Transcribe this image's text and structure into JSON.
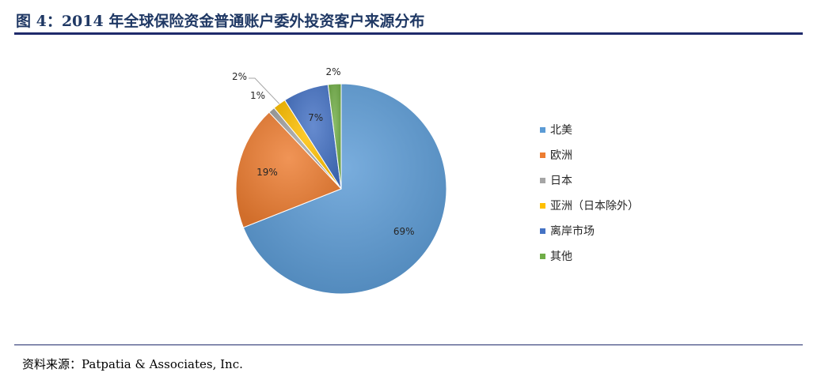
{
  "title": "图 4：2014 年全球保险资金普通账户委外投资客户来源分布",
  "source": "资料来源：Patpatia & Associates, Inc.",
  "chart_data": {
    "type": "pie",
    "title": "",
    "legend_position": "right",
    "slices": [
      {
        "label": "北美",
        "value": 69,
        "display": "69%",
        "color": "#5b9bd5"
      },
      {
        "label": "欧洲",
        "value": 19,
        "display": "19%",
        "color": "#ed7d31"
      },
      {
        "label": "日本",
        "value": 1,
        "display": "1%",
        "color": "#a5a5a5"
      },
      {
        "label": "亚洲（日本除外）",
        "value": 2,
        "display": "2%",
        "color": "#ffc000"
      },
      {
        "label": "离岸市场",
        "value": 7,
        "display": "7%",
        "color": "#4472c4"
      },
      {
        "label": "其他",
        "value": 2,
        "display": "2%",
        "color": "#70ad47"
      }
    ]
  }
}
